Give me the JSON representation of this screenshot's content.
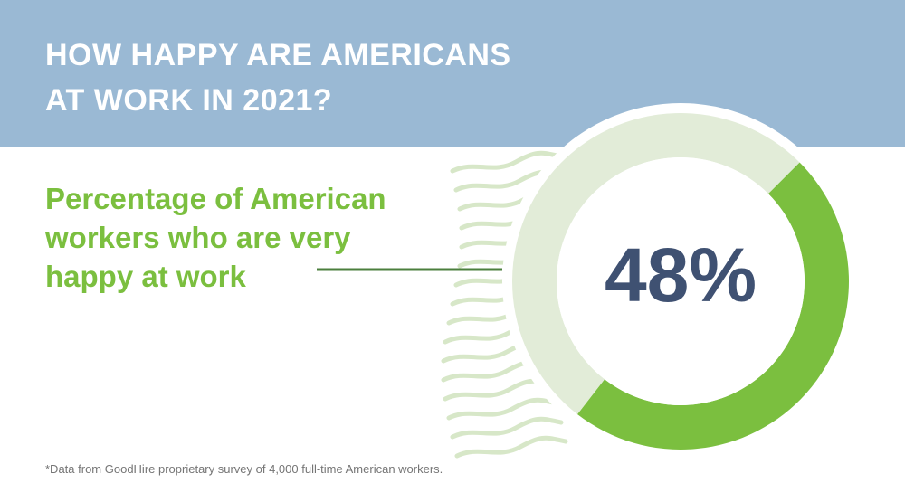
{
  "header": {
    "title_line_1": "HOW HAPPY ARE AMERICANS",
    "title_line_2": "AT WORK IN 2021?"
  },
  "subtitle": {
    "line_1": "Percentage of American",
    "line_2": "workers who are very",
    "line_3": "happy at work"
  },
  "footnote": "*Data from GoodHire proprietary survey of 4,000 full-time American workers.",
  "colors": {
    "header_background": "#9ab9d4",
    "accent_green": "#7bbf3f",
    "ring_track": "#e2ecd8",
    "value_text": "#3f5172",
    "connector_line": "#4b7f3d",
    "decorative_lines": "#d7e7c8"
  },
  "chart_data": {
    "type": "pie",
    "value_label": "48%",
    "segments": [
      {
        "value": 48,
        "color": "#7bbf3f"
      },
      {
        "value": 52,
        "color": "#e2ecd8"
      }
    ]
  }
}
